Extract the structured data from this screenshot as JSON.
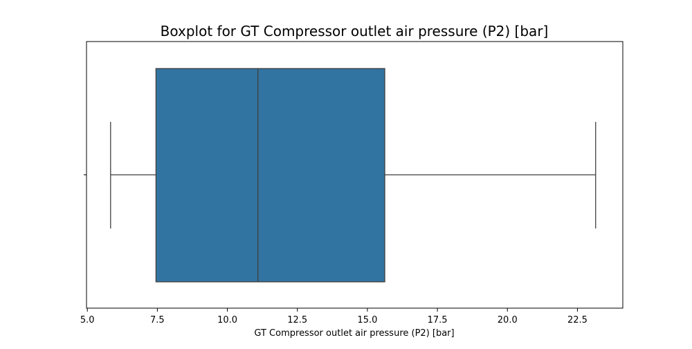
{
  "chart_data": {
    "type": "box",
    "title": "Boxplot for GT Compressor outlet air pressure (P2) [bar]",
    "xlabel": "GT Compressor outlet air pressure (P2) [bar]",
    "ylabel": "",
    "xlim": [
      4.97,
      24.12
    ],
    "xticks": [
      5.0,
      7.5,
      10.0,
      12.5,
      15.0,
      17.5,
      20.0,
      22.5
    ],
    "xtick_labels": [
      "5.0",
      "7.5",
      "10.0",
      "12.5",
      "15.0",
      "17.5",
      "20.0",
      "22.5"
    ],
    "box": {
      "whisker_low": 5.83,
      "q1": 7.45,
      "median": 11.09,
      "q3": 15.62,
      "whisker_high": 23.15
    },
    "box_color": "#3274a1",
    "line_color": "#3f3f3f",
    "grid": false,
    "legend": "none"
  }
}
